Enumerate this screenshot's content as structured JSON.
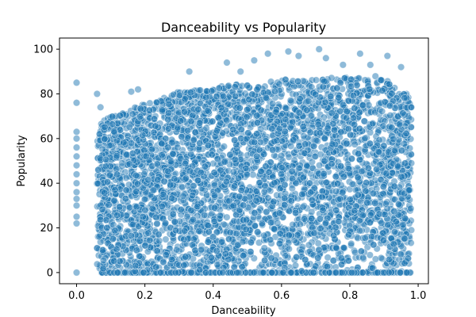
{
  "chart_data": {
    "type": "scatter",
    "title": "Danceability vs Popularity",
    "xlabel": "Danceability",
    "ylabel": "Popularity",
    "xlim": [
      -0.05,
      1.03
    ],
    "ylim": [
      -5,
      105
    ],
    "xticks": [
      0.0,
      0.2,
      0.4,
      0.6,
      0.8,
      1.0
    ],
    "xtick_labels": [
      "0.0",
      "0.2",
      "0.4",
      "0.6",
      "0.8",
      "1.0"
    ],
    "yticks": [
      0,
      20,
      40,
      60,
      80,
      100
    ],
    "ytick_labels": [
      "0",
      "20",
      "40",
      "60",
      "80",
      "100"
    ],
    "grid": false,
    "legend": "none",
    "marker_color": "#1f77b4",
    "marker_edge_color": "#ffffff",
    "marker_alpha": 0.5,
    "x_range_dense": [
      0.06,
      0.98
    ],
    "y_range": [
      0,
      100
    ],
    "points": [
      {
        "x": 0.0,
        "y": 0
      },
      {
        "x": 0.0,
        "y": 22
      },
      {
        "x": 0.0,
        "y": 25
      },
      {
        "x": 0.0,
        "y": 30
      },
      {
        "x": 0.0,
        "y": 33
      },
      {
        "x": 0.0,
        "y": 36
      },
      {
        "x": 0.0,
        "y": 40
      },
      {
        "x": 0.0,
        "y": 44
      },
      {
        "x": 0.0,
        "y": 48
      },
      {
        "x": 0.0,
        "y": 52
      },
      {
        "x": 0.0,
        "y": 56
      },
      {
        "x": 0.0,
        "y": 60
      },
      {
        "x": 0.0,
        "y": 63
      },
      {
        "x": 0.0,
        "y": 76
      },
      {
        "x": 0.0,
        "y": 85
      },
      {
        "x": 0.06,
        "y": 80
      },
      {
        "x": 0.07,
        "y": 74
      },
      {
        "x": 0.16,
        "y": 81
      },
      {
        "x": 0.18,
        "y": 82
      },
      {
        "x": 0.33,
        "y": 90
      },
      {
        "x": 0.44,
        "y": 94
      },
      {
        "x": 0.48,
        "y": 90
      },
      {
        "x": 0.52,
        "y": 95
      },
      {
        "x": 0.56,
        "y": 98
      },
      {
        "x": 0.62,
        "y": 99
      },
      {
        "x": 0.65,
        "y": 97
      },
      {
        "x": 0.71,
        "y": 100
      },
      {
        "x": 0.73,
        "y": 96
      },
      {
        "x": 0.78,
        "y": 93
      },
      {
        "x": 0.83,
        "y": 98
      },
      {
        "x": 0.86,
        "y": 93
      },
      {
        "x": 0.91,
        "y": 97
      },
      {
        "x": 0.95,
        "y": 92
      },
      {
        "x": 0.98,
        "y": 74
      },
      {
        "x": 0.98,
        "y": 49
      },
      {
        "x": 0.98,
        "y": 19
      }
    ]
  }
}
